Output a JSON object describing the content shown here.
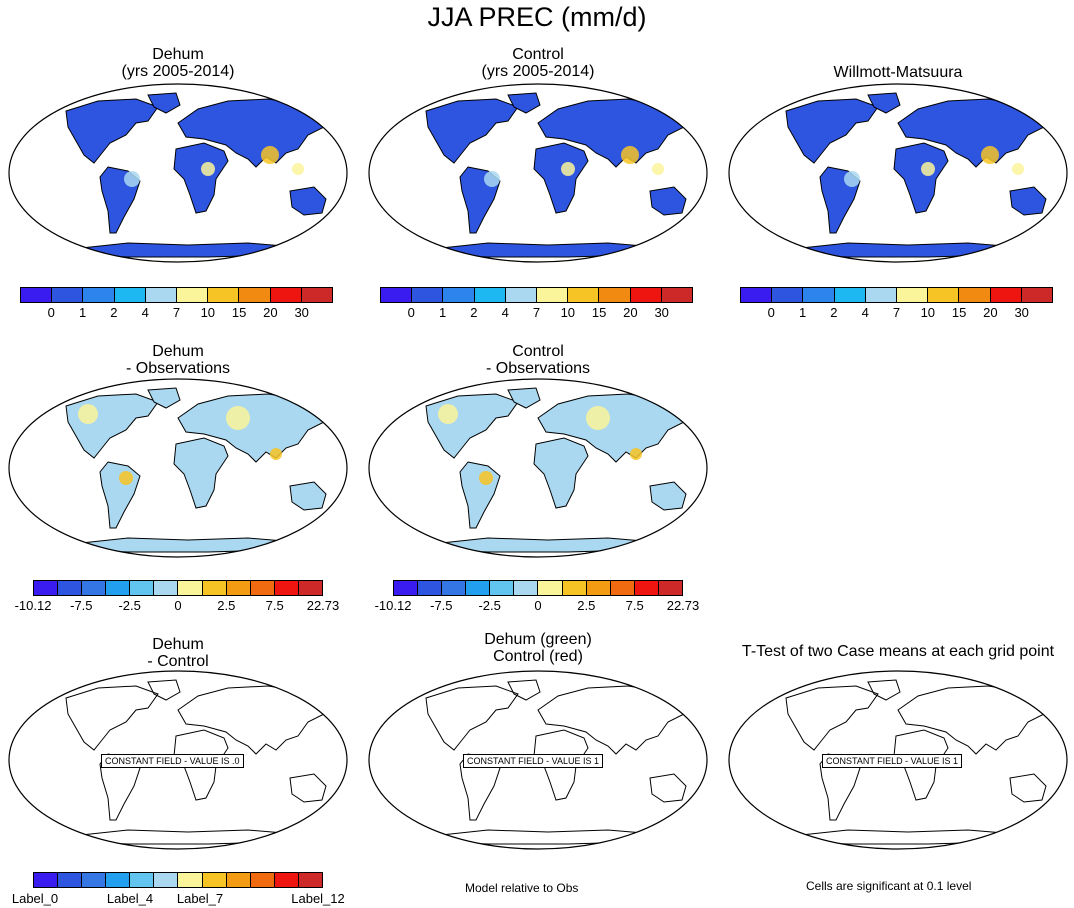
{
  "main_title": "JJA PREC (mm/d)",
  "palettes": {
    "abs": [
      "#3a1cf0",
      "#2e55e0",
      "#2d84ec",
      "#1db8f2",
      "#a9d8f0",
      "#faf59a",
      "#f7c425",
      "#f18a10",
      "#ee1410",
      "#cd2929"
    ],
    "diff": [
      "#3a1cf0",
      "#2e55e0",
      "#3477e4",
      "#239ff0",
      "#61c5ef",
      "#a9d8f0",
      "#faf59a",
      "#f7c425",
      "#f29b13",
      "#f06a10",
      "#ee1410",
      "#cd2929"
    ],
    "label": [
      "#3a1cf0",
      "#2e55e0",
      "#3477e4",
      "#239ff0",
      "#61c5ef",
      "#a9d8f0",
      "#faf59a",
      "#f7c425",
      "#f29b13",
      "#f06a10",
      "#ee1410",
      "#cd2929"
    ]
  },
  "panels": [
    {
      "title1": "Dehum",
      "title2": "(yrs 2005-2014)",
      "fill": "abs"
    },
    {
      "title1": "Control",
      "title2": "(yrs 2005-2014)",
      "fill": "abs"
    },
    {
      "title1": "Willmott-Matsuura",
      "title2": "",
      "fill": "abs"
    },
    {
      "title1": "Dehum",
      "title2": "- Observations",
      "fill": "diff"
    },
    {
      "title1": "Control",
      "title2": "- Observations",
      "fill": "diff"
    },
    {
      "title1": "Dehum",
      "title2": "- Control",
      "fill": "none",
      "constant": "CONSTANT FIELD - VALUE IS .0"
    },
    {
      "title1": "Dehum (green)",
      "title2": "Control (red)",
      "fill": "none",
      "constant": "CONSTANT FIELD - VALUE IS 1"
    },
    {
      "title1": "T-Test of two Case means at each grid point",
      "title2": "",
      "fill": "none",
      "constant": "CONSTANT FIELD - VALUE IS 1"
    }
  ],
  "colorbars": {
    "abs_ticks": [
      "0",
      "1",
      "2",
      "4",
      "7",
      "10",
      "15",
      "20",
      "30"
    ],
    "diff_ticks": [
      "-10.12",
      "-7.5",
      "-2.5",
      "0",
      "2.5",
      "7.5",
      "22.73"
    ],
    "label_ticks": [
      "Label_0",
      "Label_4",
      "Label_7",
      "Label_12"
    ]
  },
  "notes": {
    "model_relative": "Model relative to Obs",
    "significance": "Cells are significant at 0.1 level"
  }
}
